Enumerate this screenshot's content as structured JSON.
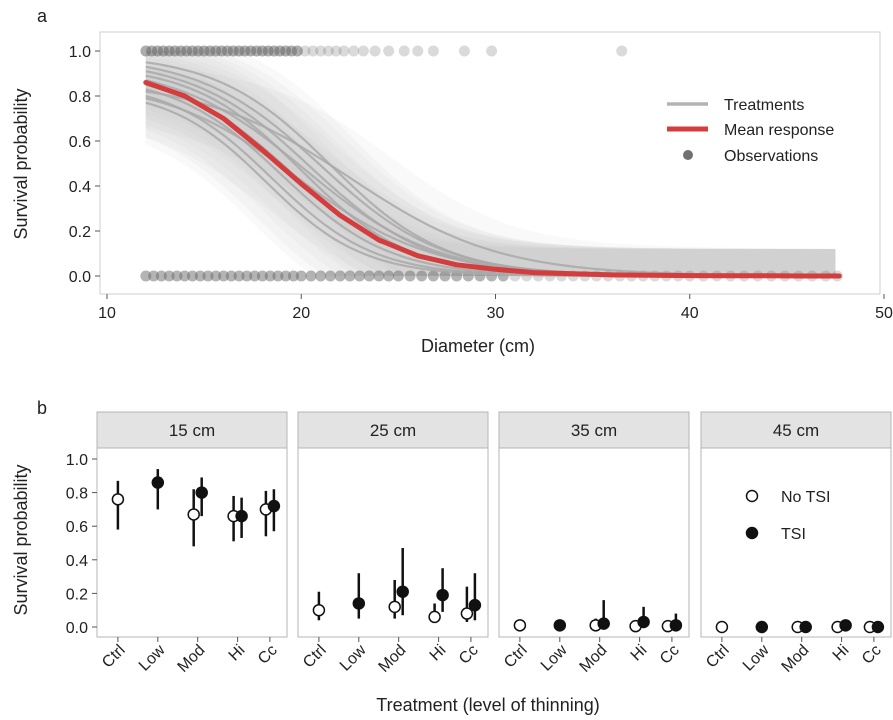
{
  "chart_data": [
    {
      "panel": "a",
      "type": "line",
      "xlabel": "Diameter (cm)",
      "ylabel": "Survival probability",
      "xlim": [
        10,
        50
      ],
      "ylim": [
        0,
        1
      ],
      "xticks": [
        "10",
        "20",
        "30",
        "40",
        "50"
      ],
      "yticks": [
        "0.0",
        "0.2",
        "0.4",
        "0.6",
        "0.8",
        "1.0"
      ],
      "grid": false,
      "legend": {
        "placement": "right",
        "entries": [
          {
            "label": "Treatments",
            "kind": "line",
            "color": "#b3b3b3"
          },
          {
            "label": "Mean response",
            "kind": "line",
            "color": "#d33d3d"
          },
          {
            "label": "Observations",
            "kind": "point",
            "color": "#707070"
          }
        ]
      },
      "mean_response": {
        "x": [
          12,
          14,
          16,
          18,
          20,
          22,
          24,
          26,
          28,
          30,
          32,
          34,
          36,
          38,
          40,
          42,
          44,
          46,
          47.7
        ],
        "y": [
          0.86,
          0.8,
          0.7,
          0.56,
          0.41,
          0.27,
          0.16,
          0.09,
          0.05,
          0.03,
          0.015,
          0.01,
          0.005,
          0.003,
          0.002,
          0.001,
          0.001,
          0.0,
          0.0
        ]
      },
      "treatment_curves": [
        {
          "y0": 0.95,
          "x50": 21.5,
          "k": 0.34
        },
        {
          "y0": 0.93,
          "x50": 21.0,
          "k": 0.32
        },
        {
          "y0": 0.91,
          "x50": 20.5,
          "k": 0.33
        },
        {
          "y0": 0.89,
          "x50": 20.0,
          "k": 0.36
        },
        {
          "y0": 0.87,
          "x50": 20.2,
          "k": 0.3
        },
        {
          "y0": 0.85,
          "x50": 19.5,
          "k": 0.34
        },
        {
          "y0": 0.83,
          "x50": 19.0,
          "k": 0.36
        },
        {
          "y0": 0.82,
          "x50": 22.5,
          "k": 0.26
        },
        {
          "y0": 0.8,
          "x50": 18.5,
          "k": 0.38
        },
        {
          "y0": 0.79,
          "x50": 19.8,
          "k": 0.29
        },
        {
          "y0": 0.77,
          "x50": 18.2,
          "k": 0.4
        }
      ],
      "observations": {
        "survived_x": [
          12.0,
          12.3,
          12.6,
          12.9,
          13.2,
          13.5,
          13.8,
          14.1,
          14.4,
          14.7,
          15.0,
          15.3,
          15.6,
          15.9,
          16.2,
          16.5,
          16.8,
          17.1,
          17.4,
          17.7,
          18.0,
          18.3,
          18.6,
          18.9,
          19.2,
          19.5,
          19.8,
          20.2,
          20.6,
          21.0,
          21.4,
          21.8,
          22.2,
          22.7,
          23.2,
          23.8,
          24.5,
          25.3,
          26.0,
          26.8,
          28.4,
          29.8,
          36.5
        ],
        "died_x": [
          12.0,
          12.4,
          12.8,
          13.2,
          13.6,
          14.0,
          14.4,
          14.8,
          15.2,
          15.6,
          16.0,
          16.4,
          16.8,
          17.2,
          17.6,
          18.0,
          18.4,
          18.8,
          19.2,
          19.6,
          20.0,
          20.5,
          21.0,
          21.5,
          22.0,
          22.5,
          23.0,
          23.5,
          24.0,
          24.5,
          25.0,
          25.6,
          26.2,
          26.8,
          27.4,
          28.0,
          28.6,
          29.2,
          29.8,
          30.4,
          31.0,
          31.6,
          32.2,
          32.8,
          33.4,
          34.0,
          34.6,
          35.2,
          35.8,
          36.4,
          37.0,
          37.6,
          38.2,
          38.8,
          39.4,
          40.0,
          40.7,
          41.4,
          42.1,
          42.8,
          43.5,
          44.2,
          44.9,
          45.6,
          46.3,
          47.0,
          47.6
        ]
      }
    },
    {
      "panel": "b",
      "type": "scatter",
      "xlabel": "Treatment (level of thinning)",
      "ylabel": "Survival probability",
      "ylim": [
        0,
        1
      ],
      "yticks": [
        "0.0",
        "0.2",
        "0.4",
        "0.6",
        "0.8",
        "1.0"
      ],
      "categories": [
        "Ctrl",
        "Low",
        "Mod",
        "Hi",
        "Cc"
      ],
      "legend": {
        "placement": "inside last facet, top",
        "entries": [
          {
            "label": "No TSI",
            "kind": "open-circle"
          },
          {
            "label": "TSI",
            "kind": "filled-circle"
          }
        ]
      },
      "facets": [
        {
          "label": "15 cm",
          "series": [
            {
              "name": "No TSI",
              "points": [
                {
                  "category": "Ctrl",
                  "value": 0.76,
                  "low": 0.58,
                  "high": 0.87
                },
                {
                  "category": "Mod",
                  "value": 0.67,
                  "low": 0.48,
                  "high": 0.82
                },
                {
                  "category": "Hi",
                  "value": 0.66,
                  "low": 0.51,
                  "high": 0.78
                },
                {
                  "category": "Cc",
                  "value": 0.7,
                  "low": 0.54,
                  "high": 0.81
                }
              ]
            },
            {
              "name": "TSI",
              "points": [
                {
                  "category": "Low",
                  "value": 0.86,
                  "low": 0.7,
                  "high": 0.94
                },
                {
                  "category": "Mod",
                  "value": 0.8,
                  "low": 0.66,
                  "high": 0.89
                },
                {
                  "category": "Hi",
                  "value": 0.66,
                  "low": 0.53,
                  "high": 0.77
                },
                {
                  "category": "Cc",
                  "value": 0.72,
                  "low": 0.57,
                  "high": 0.82
                }
              ]
            }
          ]
        },
        {
          "label": "25 cm",
          "series": [
            {
              "name": "No TSI",
              "points": [
                {
                  "category": "Ctrl",
                  "value": 0.1,
                  "low": 0.04,
                  "high": 0.21
                },
                {
                  "category": "Mod",
                  "value": 0.12,
                  "low": 0.05,
                  "high": 0.28
                },
                {
                  "category": "Hi",
                  "value": 0.06,
                  "low": 0.03,
                  "high": 0.14
                },
                {
                  "category": "Cc",
                  "value": 0.08,
                  "low": 0.03,
                  "high": 0.24
                }
              ]
            },
            {
              "name": "TSI",
              "points": [
                {
                  "category": "Low",
                  "value": 0.14,
                  "low": 0.05,
                  "high": 0.32
                },
                {
                  "category": "Mod",
                  "value": 0.21,
                  "low": 0.07,
                  "high": 0.47
                },
                {
                  "category": "Hi",
                  "value": 0.19,
                  "low": 0.09,
                  "high": 0.35
                },
                {
                  "category": "Cc",
                  "value": 0.13,
                  "low": 0.04,
                  "high": 0.32
                }
              ]
            }
          ]
        },
        {
          "label": "35 cm",
          "series": [
            {
              "name": "No TSI",
              "points": [
                {
                  "category": "Ctrl",
                  "value": 0.01,
                  "low": 0.0,
                  "high": 0.02
                },
                {
                  "category": "Mod",
                  "value": 0.01,
                  "low": 0.0,
                  "high": 0.05
                },
                {
                  "category": "Hi",
                  "value": 0.005,
                  "low": 0.0,
                  "high": 0.02
                },
                {
                  "category": "Cc",
                  "value": 0.005,
                  "low": 0.0,
                  "high": 0.03
                }
              ]
            },
            {
              "name": "TSI",
              "points": [
                {
                  "category": "Low",
                  "value": 0.01,
                  "low": 0.0,
                  "high": 0.04
                },
                {
                  "category": "Mod",
                  "value": 0.02,
                  "low": 0.0,
                  "high": 0.16
                },
                {
                  "category": "Hi",
                  "value": 0.03,
                  "low": 0.0,
                  "high": 0.12
                },
                {
                  "category": "Cc",
                  "value": 0.01,
                  "low": 0.0,
                  "high": 0.08
                }
              ]
            }
          ]
        },
        {
          "label": "45 cm",
          "series": [
            {
              "name": "No TSI",
              "points": [
                {
                  "category": "Ctrl",
                  "value": 0.0,
                  "low": 0.0,
                  "high": 0.0
                },
                {
                  "category": "Mod",
                  "value": 0.0,
                  "low": 0.0,
                  "high": 0.01
                },
                {
                  "category": "Hi",
                  "value": 0.0,
                  "low": 0.0,
                  "high": 0.0
                },
                {
                  "category": "Cc",
                  "value": 0.0,
                  "low": 0.0,
                  "high": 0.0
                }
              ]
            },
            {
              "name": "TSI",
              "points": [
                {
                  "category": "Low",
                  "value": 0.0,
                  "low": 0.0,
                  "high": 0.0
                },
                {
                  "category": "Mod",
                  "value": 0.0,
                  "low": 0.0,
                  "high": 0.03
                },
                {
                  "category": "Hi",
                  "value": 0.01,
                  "low": 0.0,
                  "high": 0.02
                },
                {
                  "category": "Cc",
                  "value": 0.0,
                  "low": 0.0,
                  "high": 0.0
                }
              ]
            }
          ]
        }
      ]
    }
  ]
}
